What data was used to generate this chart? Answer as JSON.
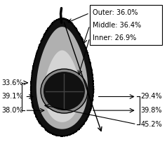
{
  "top_labels": [
    "Outer: 36.0%",
    "Middle: 36.4%",
    "Inner: 26.9%"
  ],
  "left_labels": [
    "33.6%",
    "39.1%",
    "38.0%"
  ],
  "right_labels": [
    "29.4%",
    "39.8%",
    "45.2%"
  ],
  "bg_color": "#ffffff",
  "skin_color": "#111111",
  "flesh_outer_color": "#b0b0b0",
  "flesh_inner_color": "#d4d4d4",
  "seed_ring_color": "#505050",
  "seed_color": "#111111",
  "font_size": 7.0
}
